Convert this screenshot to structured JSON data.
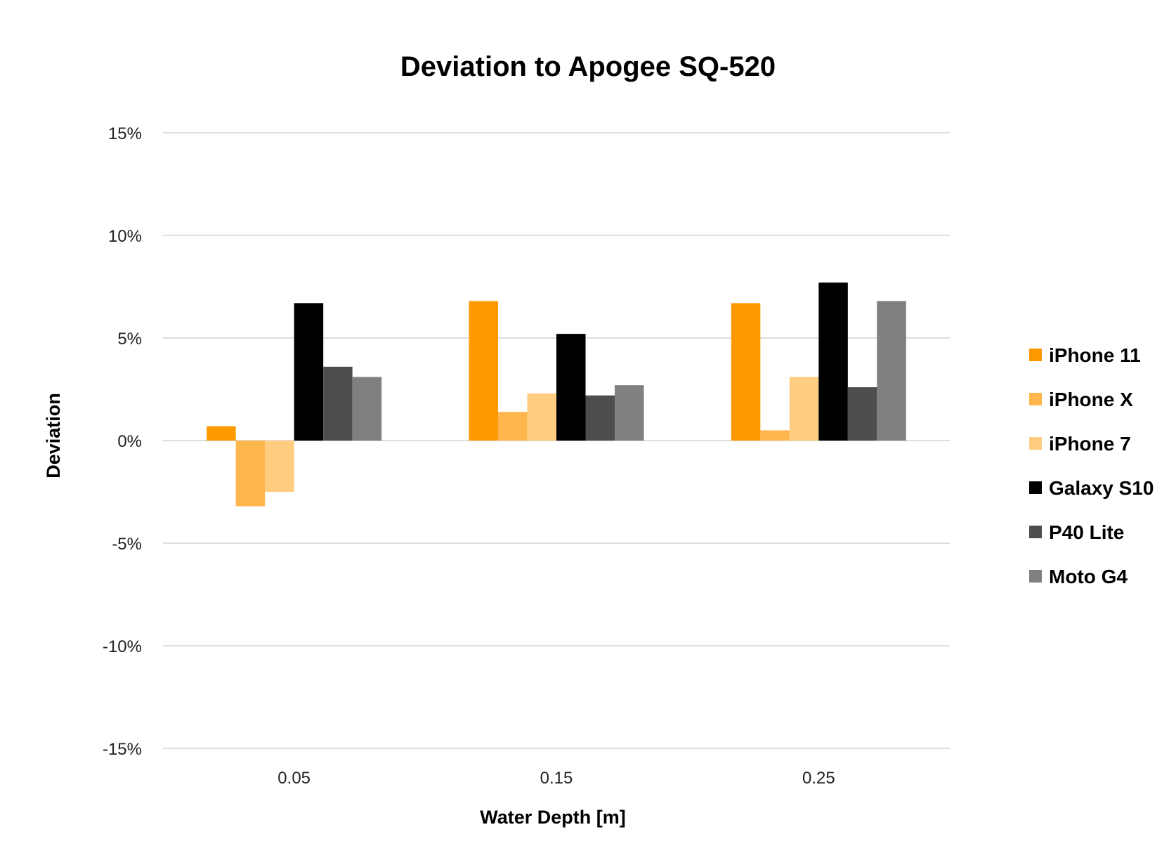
{
  "chart_data": {
    "type": "bar",
    "title": "Deviation to Apogee SQ-520",
    "xlabel": "Water Depth [m]",
    "ylabel": "Deviation",
    "categories": [
      "0.05",
      "0.15",
      "0.25"
    ],
    "y_ticks": [
      "15%",
      "10%",
      "5%",
      "0%",
      "-5%",
      "-10%",
      "-15%"
    ],
    "ylim": [
      -15,
      15
    ],
    "grid": true,
    "legend_position": "right",
    "series": [
      {
        "name": "iPhone 11",
        "color": "#FF9900",
        "values": [
          0.7,
          6.8,
          6.7
        ]
      },
      {
        "name": "iPhone X",
        "color": "#FFB74D",
        "values": [
          -3.2,
          1.4,
          0.5
        ]
      },
      {
        "name": "iPhone 7",
        "color": "#FFCC80",
        "values": [
          -2.5,
          2.3,
          3.1
        ]
      },
      {
        "name": "Galaxy S10",
        "color": "#000000",
        "values": [
          6.7,
          5.2,
          7.7
        ]
      },
      {
        "name": "P40 Lite",
        "color": "#4D4D4D",
        "values": [
          3.6,
          2.2,
          2.6
        ]
      },
      {
        "name": "Moto G4",
        "color": "#808080",
        "values": [
          3.1,
          2.7,
          6.8
        ]
      }
    ]
  }
}
